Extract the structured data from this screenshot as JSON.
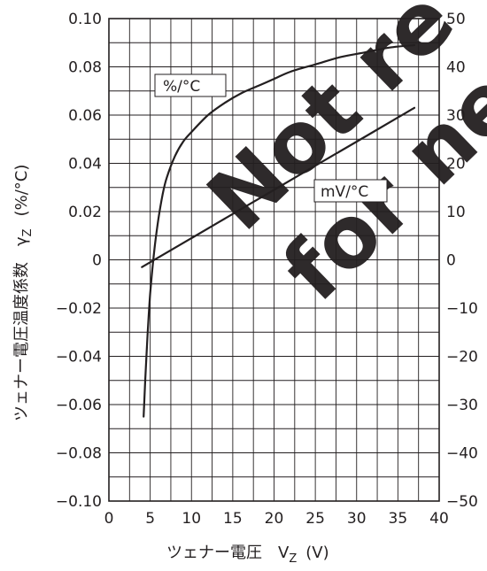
{
  "chart_data": {
    "type": "line",
    "title": "",
    "xlabel": "ツェナー電圧　V",
    "xlabel_sub": "Z",
    "xlabel_unit": "(V)",
    "ylabel_left": "ツェナー電圧温度係数　γ",
    "ylabel_left_sub": "Z",
    "ylabel_left_unit": "(%/°C)",
    "xlim": [
      0,
      40
    ],
    "ylim_left": [
      -0.1,
      0.1
    ],
    "ylim_right": [
      -50,
      50
    ],
    "x_ticks": [
      "0",
      "5",
      "10",
      "15",
      "20",
      "25",
      "30",
      "35",
      "40"
    ],
    "y_left_ticks": [
      "0.10",
      "0.08",
      "0.06",
      "0.04",
      "0.02",
      "0",
      "−0.02",
      "−0.04",
      "−0.06",
      "−0.08",
      "−0.10"
    ],
    "y_right_ticks": [
      "50",
      "40",
      "30",
      "20",
      "10",
      "0",
      "−10",
      "−20",
      "−30",
      "−40",
      "−50"
    ],
    "grid": true,
    "series": [
      {
        "name": "%/°C",
        "axis": "left",
        "x": [
          4.2,
          4.4,
          4.7,
          5.0,
          5.5,
          6.0,
          6.5,
          7.0,
          8.0,
          9.0,
          10.0,
          12.0,
          14.0,
          16.0,
          18.0,
          20.0,
          22.0,
          25.0,
          28.0,
          31.0,
          34.0,
          37.0
        ],
        "y": [
          -0.065,
          -0.05,
          -0.03,
          -0.014,
          0.004,
          0.017,
          0.027,
          0.034,
          0.043,
          0.049,
          0.053,
          0.06,
          0.065,
          0.069,
          0.072,
          0.075,
          0.078,
          0.081,
          0.084,
          0.086,
          0.088,
          0.089
        ]
      },
      {
        "name": "mV/°C",
        "axis": "right",
        "x": [
          4.0,
          6.0,
          10.0,
          15.0,
          20.0,
          25.0,
          30.0,
          35.0,
          37.0
        ],
        "y": [
          -1.5,
          0.5,
          4.5,
          9.5,
          14.5,
          19.5,
          24.5,
          29.5,
          31.5
        ]
      }
    ]
  },
  "labels": {
    "curve_pct": "%/°C",
    "curve_mv": "mV/°C"
  },
  "watermark": {
    "line1": "Not re",
    "line2": "for ne",
    "color": "#ff0000"
  }
}
